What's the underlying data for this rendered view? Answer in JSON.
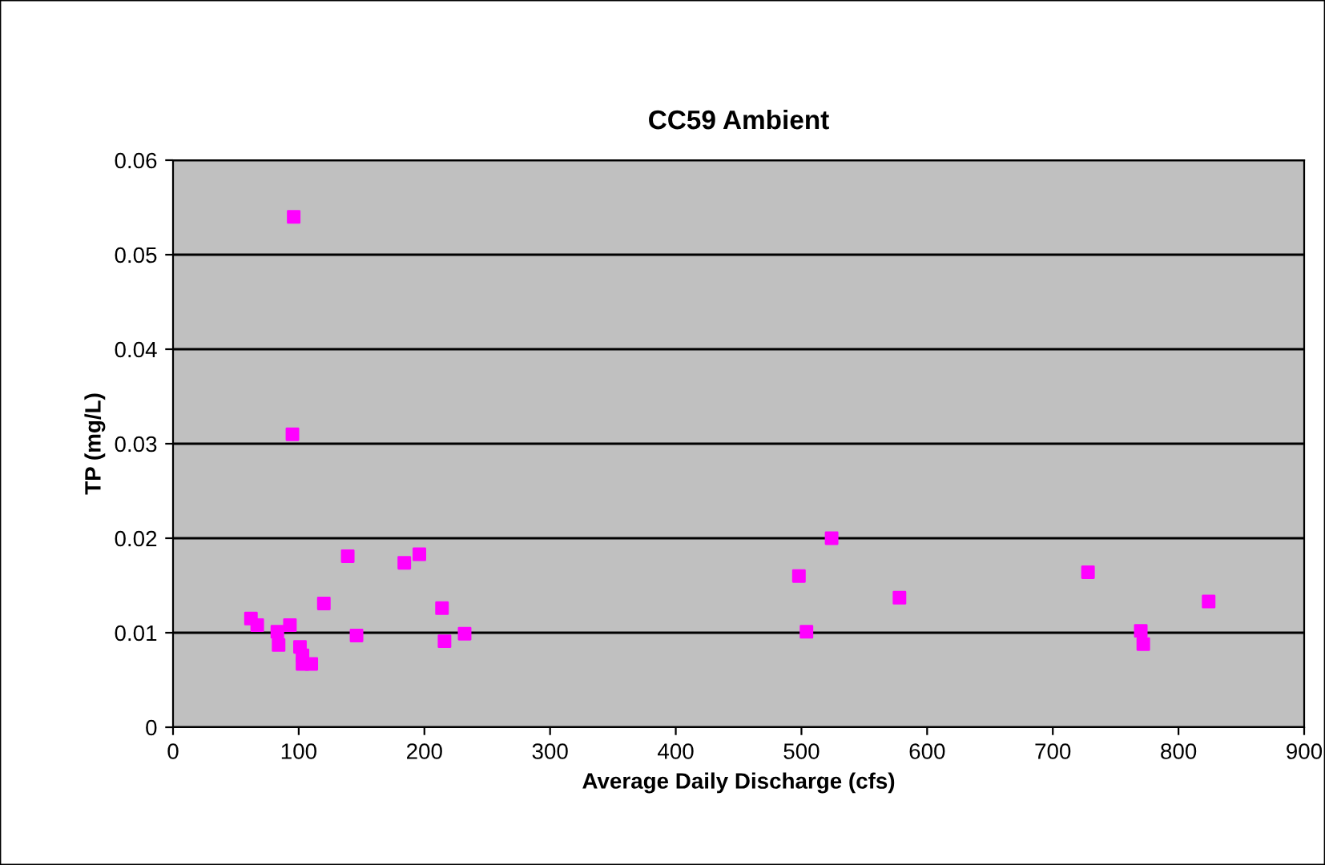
{
  "chart_data": {
    "type": "scatter",
    "title": "CC59 Ambient",
    "xlabel": "Average Daily Discharge (cfs)",
    "ylabel": "TP (mg/L)",
    "x": [
      62,
      67,
      83,
      84,
      93,
      95,
      96,
      101,
      103,
      103,
      110,
      120,
      139,
      146,
      184,
      196,
      214,
      216,
      232,
      498,
      504,
      524,
      578,
      728,
      770,
      772,
      824
    ],
    "series": [
      {
        "color": "#ff00ff",
        "values": [
          0.0115,
          0.0108,
          0.0101,
          0.0087,
          0.0108,
          0.031,
          0.054,
          0.0085,
          0.0076,
          0.0067,
          0.0067,
          0.0131,
          0.0181,
          0.0097,
          0.0174,
          0.0183,
          0.0126,
          0.0091,
          0.0099,
          0.016,
          0.0101,
          0.02,
          0.0137,
          0.0164,
          0.0102,
          0.0088,
          0.0133
        ]
      }
    ],
    "xlim": [
      0,
      900
    ],
    "xticks": [
      0,
      100,
      200,
      300,
      400,
      500,
      600,
      700,
      800,
      900
    ],
    "ylim": [
      0,
      0.06
    ],
    "yticks": [
      0,
      0.01,
      0.02,
      0.03,
      0.04,
      0.05,
      0.06
    ],
    "grid": "y",
    "marker": "square",
    "legend": false
  }
}
